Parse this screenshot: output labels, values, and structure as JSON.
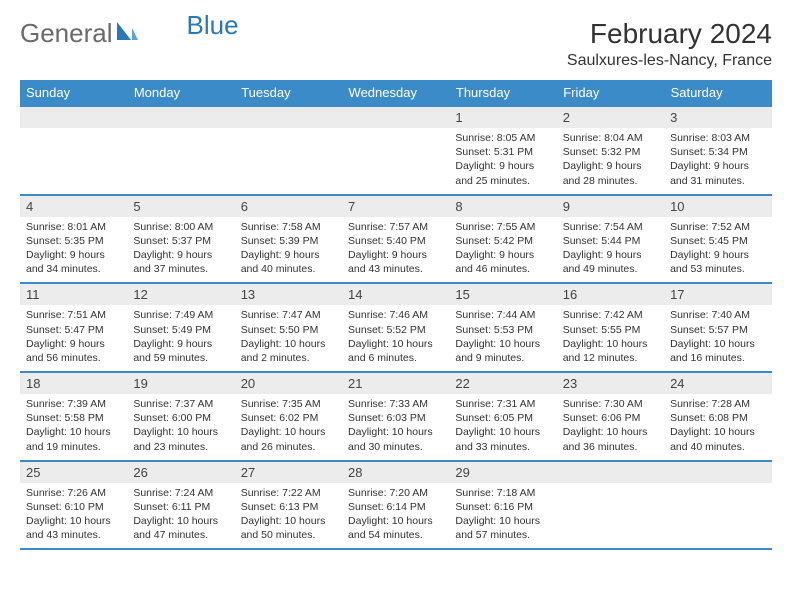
{
  "logo": {
    "general": "General",
    "blue": "Blue"
  },
  "title": "February 2024",
  "location": "Saulxures-les-Nancy, France",
  "weekdays": [
    "Sunday",
    "Monday",
    "Tuesday",
    "Wednesday",
    "Thursday",
    "Friday",
    "Saturday"
  ],
  "colors": {
    "header_bg": "#3b8bc8",
    "header_text": "#ffffff",
    "daynum_bg": "#ececec",
    "border": "#3b8bc8",
    "logo_gray": "#6a6a6a",
    "logo_blue": "#2a78b8"
  },
  "grid": [
    [
      null,
      null,
      null,
      null,
      {
        "n": "1",
        "sr": "8:05 AM",
        "ss": "5:31 PM",
        "dl": "9 hours and 25 minutes."
      },
      {
        "n": "2",
        "sr": "8:04 AM",
        "ss": "5:32 PM",
        "dl": "9 hours and 28 minutes."
      },
      {
        "n": "3",
        "sr": "8:03 AM",
        "ss": "5:34 PM",
        "dl": "9 hours and 31 minutes."
      }
    ],
    [
      {
        "n": "4",
        "sr": "8:01 AM",
        "ss": "5:35 PM",
        "dl": "9 hours and 34 minutes."
      },
      {
        "n": "5",
        "sr": "8:00 AM",
        "ss": "5:37 PM",
        "dl": "9 hours and 37 minutes."
      },
      {
        "n": "6",
        "sr": "7:58 AM",
        "ss": "5:39 PM",
        "dl": "9 hours and 40 minutes."
      },
      {
        "n": "7",
        "sr": "7:57 AM",
        "ss": "5:40 PM",
        "dl": "9 hours and 43 minutes."
      },
      {
        "n": "8",
        "sr": "7:55 AM",
        "ss": "5:42 PM",
        "dl": "9 hours and 46 minutes."
      },
      {
        "n": "9",
        "sr": "7:54 AM",
        "ss": "5:44 PM",
        "dl": "9 hours and 49 minutes."
      },
      {
        "n": "10",
        "sr": "7:52 AM",
        "ss": "5:45 PM",
        "dl": "9 hours and 53 minutes."
      }
    ],
    [
      {
        "n": "11",
        "sr": "7:51 AM",
        "ss": "5:47 PM",
        "dl": "9 hours and 56 minutes."
      },
      {
        "n": "12",
        "sr": "7:49 AM",
        "ss": "5:49 PM",
        "dl": "9 hours and 59 minutes."
      },
      {
        "n": "13",
        "sr": "7:47 AM",
        "ss": "5:50 PM",
        "dl": "10 hours and 2 minutes."
      },
      {
        "n": "14",
        "sr": "7:46 AM",
        "ss": "5:52 PM",
        "dl": "10 hours and 6 minutes."
      },
      {
        "n": "15",
        "sr": "7:44 AM",
        "ss": "5:53 PM",
        "dl": "10 hours and 9 minutes."
      },
      {
        "n": "16",
        "sr": "7:42 AM",
        "ss": "5:55 PM",
        "dl": "10 hours and 12 minutes."
      },
      {
        "n": "17",
        "sr": "7:40 AM",
        "ss": "5:57 PM",
        "dl": "10 hours and 16 minutes."
      }
    ],
    [
      {
        "n": "18",
        "sr": "7:39 AM",
        "ss": "5:58 PM",
        "dl": "10 hours and 19 minutes."
      },
      {
        "n": "19",
        "sr": "7:37 AM",
        "ss": "6:00 PM",
        "dl": "10 hours and 23 minutes."
      },
      {
        "n": "20",
        "sr": "7:35 AM",
        "ss": "6:02 PM",
        "dl": "10 hours and 26 minutes."
      },
      {
        "n": "21",
        "sr": "7:33 AM",
        "ss": "6:03 PM",
        "dl": "10 hours and 30 minutes."
      },
      {
        "n": "22",
        "sr": "7:31 AM",
        "ss": "6:05 PM",
        "dl": "10 hours and 33 minutes."
      },
      {
        "n": "23",
        "sr": "7:30 AM",
        "ss": "6:06 PM",
        "dl": "10 hours and 36 minutes."
      },
      {
        "n": "24",
        "sr": "7:28 AM",
        "ss": "6:08 PM",
        "dl": "10 hours and 40 minutes."
      }
    ],
    [
      {
        "n": "25",
        "sr": "7:26 AM",
        "ss": "6:10 PM",
        "dl": "10 hours and 43 minutes."
      },
      {
        "n": "26",
        "sr": "7:24 AM",
        "ss": "6:11 PM",
        "dl": "10 hours and 47 minutes."
      },
      {
        "n": "27",
        "sr": "7:22 AM",
        "ss": "6:13 PM",
        "dl": "10 hours and 50 minutes."
      },
      {
        "n": "28",
        "sr": "7:20 AM",
        "ss": "6:14 PM",
        "dl": "10 hours and 54 minutes."
      },
      {
        "n": "29",
        "sr": "7:18 AM",
        "ss": "6:16 PM",
        "dl": "10 hours and 57 minutes."
      },
      null,
      null
    ]
  ],
  "labels": {
    "sunrise": "Sunrise: ",
    "sunset": "Sunset: ",
    "daylight": "Daylight: "
  }
}
